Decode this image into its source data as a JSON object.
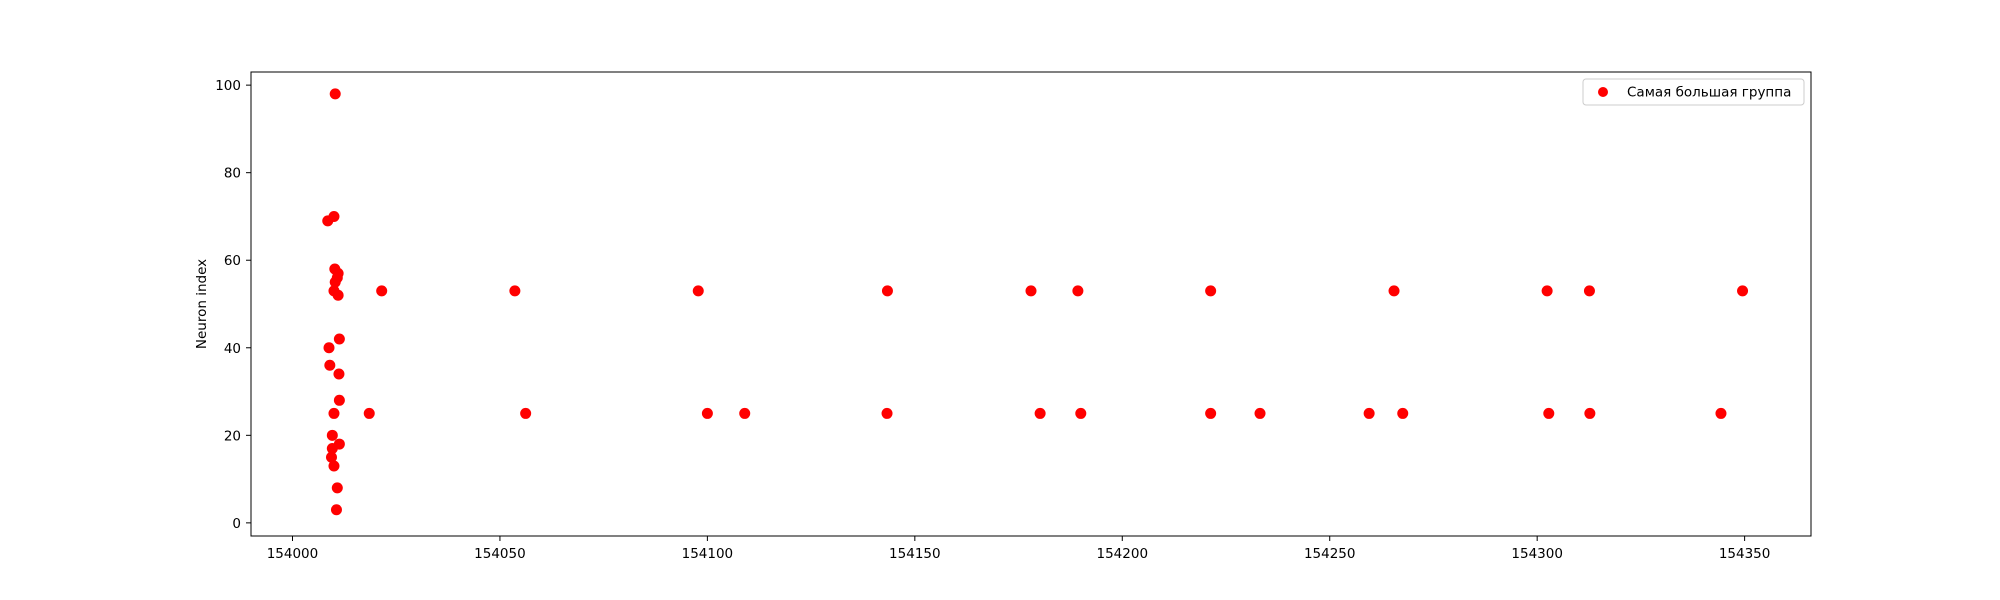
{
  "chart_data": {
    "type": "scatter",
    "title": "",
    "xlabel": "",
    "ylabel": "Neuron index",
    "xlim": [
      153990,
      154366
    ],
    "ylim": [
      -3,
      103
    ],
    "xticks": [
      154000,
      154050,
      154100,
      154150,
      154200,
      154250,
      154300,
      154350
    ],
    "yticks": [
      0,
      20,
      40,
      60,
      80,
      100
    ],
    "grid": false,
    "legend_position": "top-right",
    "series": [
      {
        "name": "Самая большая группа",
        "color": "#ff0000",
        "points": [
          [
            154010.3,
            98
          ],
          [
            154010.0,
            70
          ],
          [
            154008.5,
            69
          ],
          [
            154010.2,
            58
          ],
          [
            154011.0,
            57
          ],
          [
            154010.8,
            56
          ],
          [
            154010.3,
            55
          ],
          [
            154010.0,
            53
          ],
          [
            154011.0,
            52
          ],
          [
            154011.3,
            42
          ],
          [
            154008.8,
            40
          ],
          [
            154009.0,
            36
          ],
          [
            154011.2,
            34
          ],
          [
            154011.3,
            28
          ],
          [
            154010.0,
            25
          ],
          [
            154009.6,
            20
          ],
          [
            154011.3,
            18
          ],
          [
            154009.6,
            17
          ],
          [
            154009.4,
            15
          ],
          [
            154010.0,
            13
          ],
          [
            154010.8,
            8
          ],
          [
            154010.6,
            3
          ],
          [
            154018.5,
            25
          ],
          [
            154021.5,
            53
          ],
          [
            154053.6,
            53
          ],
          [
            154056.2,
            25
          ],
          [
            154097.8,
            53
          ],
          [
            154100.0,
            25
          ],
          [
            154109.0,
            25
          ],
          [
            154143.4,
            53
          ],
          [
            154143.3,
            25
          ],
          [
            154178.0,
            53
          ],
          [
            154180.2,
            25
          ],
          [
            154189.3,
            53
          ],
          [
            154190.0,
            25
          ],
          [
            154221.3,
            53
          ],
          [
            154221.3,
            25
          ],
          [
            154233.2,
            25
          ],
          [
            154259.5,
            25
          ],
          [
            154265.5,
            53
          ],
          [
            154267.6,
            25
          ],
          [
            154302.4,
            53
          ],
          [
            154302.8,
            25
          ],
          [
            154312.6,
            53
          ],
          [
            154312.7,
            25
          ],
          [
            154344.3,
            25
          ],
          [
            154349.5,
            53
          ]
        ]
      }
    ]
  }
}
